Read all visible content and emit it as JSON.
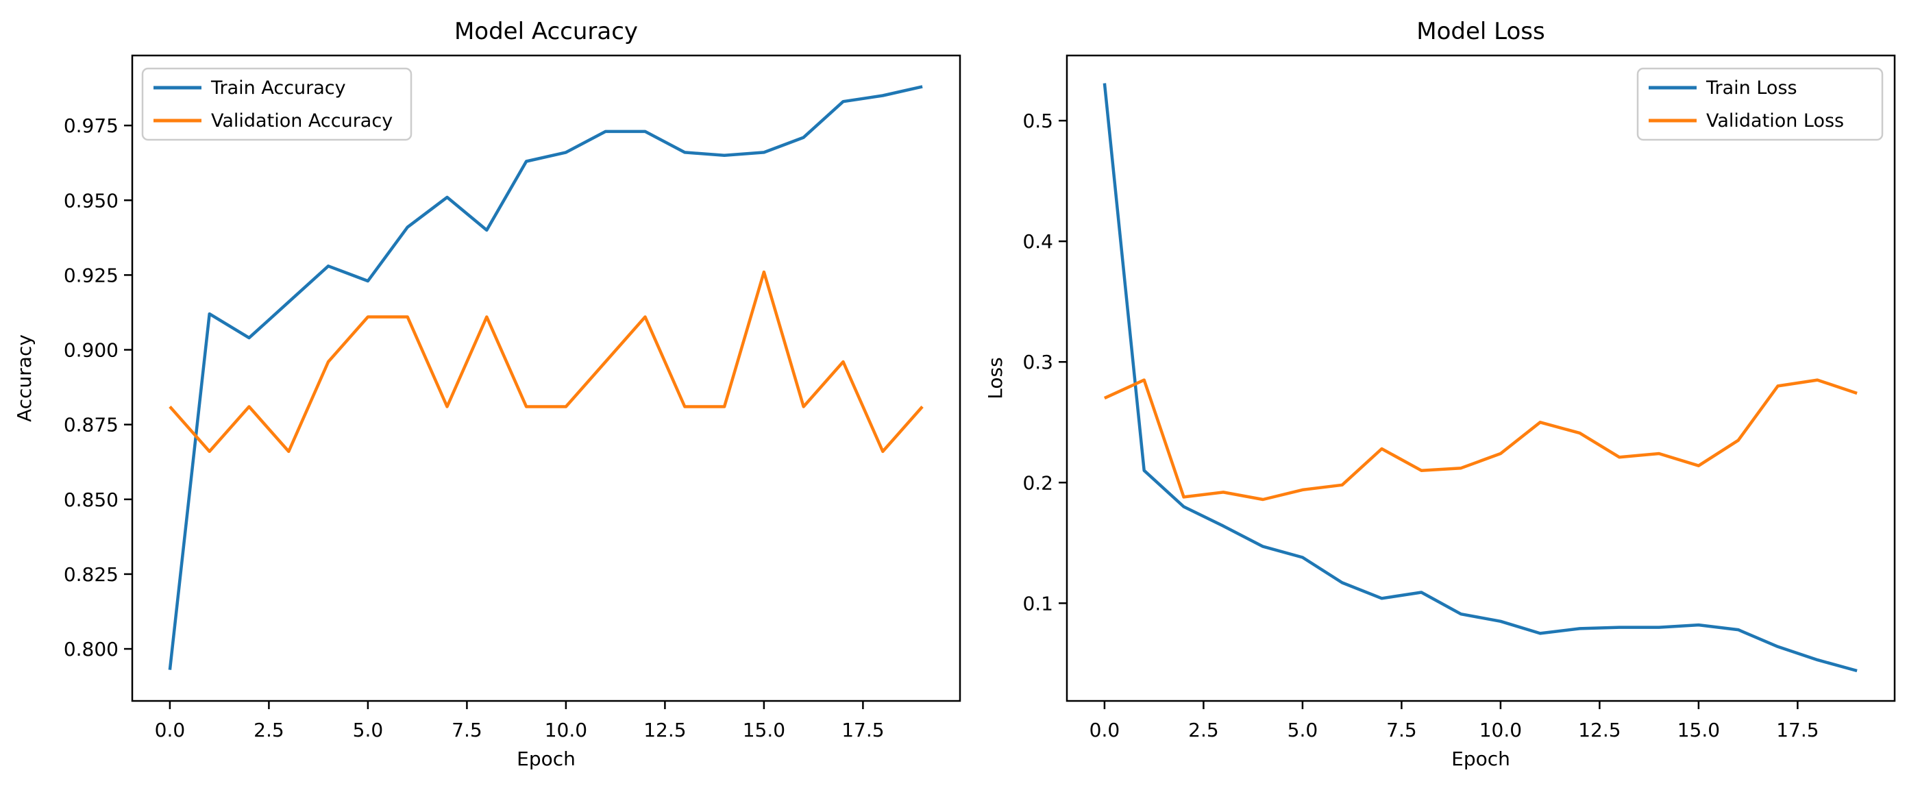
{
  "figure": {
    "background": "#ffffff"
  },
  "colors": {
    "train": "#1f77b4",
    "validation": "#ff7f0e",
    "spine": "#000000",
    "text": "#000000",
    "legend_border": "#cccccc"
  },
  "chart_data": [
    {
      "type": "line",
      "title": "Model Accuracy",
      "xlabel": "Epoch",
      "ylabel": "Accuracy",
      "grid": false,
      "legend_position": "upper-left",
      "xlim": [
        -0.95,
        19.95
      ],
      "ylim": [
        0.7826,
        0.9984
      ],
      "x": [
        0,
        1,
        2,
        3,
        4,
        5,
        6,
        7,
        8,
        9,
        10,
        11,
        12,
        13,
        14,
        15,
        16,
        17,
        18,
        19
      ],
      "xticks": {
        "values": [
          0,
          2.5,
          5,
          7.5,
          10,
          12.5,
          15,
          17.5
        ],
        "labels": [
          "0.0",
          "2.5",
          "5.0",
          "7.5",
          "10.0",
          "12.5",
          "15.0",
          "17.5"
        ]
      },
      "yticks": {
        "values": [
          0.8,
          0.825,
          0.85,
          0.875,
          0.9,
          0.925,
          0.95,
          0.975
        ],
        "labels": [
          "0.800",
          "0.825",
          "0.850",
          "0.875",
          "0.900",
          "0.925",
          "0.950",
          "0.975"
        ]
      },
      "series": [
        {
          "name": "Train Accuracy",
          "color_key": "train",
          "values": [
            0.793,
            0.912,
            0.904,
            0.916,
            0.928,
            0.923,
            0.941,
            0.951,
            0.94,
            0.963,
            0.966,
            0.973,
            0.973,
            0.966,
            0.965,
            0.966,
            0.971,
            0.983,
            0.985,
            0.988
          ]
        },
        {
          "name": "Validation Accuracy",
          "color_key": "validation",
          "values": [
            0.881,
            0.866,
            0.881,
            0.866,
            0.896,
            0.911,
            0.911,
            0.881,
            0.911,
            0.881,
            0.881,
            0.896,
            0.911,
            0.881,
            0.881,
            0.926,
            0.881,
            0.896,
            0.866,
            0.881
          ]
        }
      ]
    },
    {
      "type": "line",
      "title": "Model Loss",
      "xlabel": "Epoch",
      "ylabel": "Loss",
      "grid": false,
      "legend_position": "upper-right",
      "xlim": [
        -0.95,
        19.95
      ],
      "ylim": [
        0.019,
        0.554
      ],
      "x": [
        0,
        1,
        2,
        3,
        4,
        5,
        6,
        7,
        8,
        9,
        10,
        11,
        12,
        13,
        14,
        15,
        16,
        17,
        18,
        19
      ],
      "xticks": {
        "values": [
          0,
          2.5,
          5,
          7.5,
          10,
          12.5,
          15,
          17.5
        ],
        "labels": [
          "0.0",
          "2.5",
          "5.0",
          "7.5",
          "10.0",
          "12.5",
          "15.0",
          "17.5"
        ]
      },
      "yticks": {
        "values": [
          0.1,
          0.2,
          0.3,
          0.4,
          0.5
        ],
        "labels": [
          "0.1",
          "0.2",
          "0.3",
          "0.4",
          "0.5"
        ]
      },
      "series": [
        {
          "name": "Train Loss",
          "color_key": "train",
          "values": [
            0.531,
            0.21,
            0.18,
            0.164,
            0.147,
            0.138,
            0.117,
            0.104,
            0.109,
            0.091,
            0.085,
            0.075,
            0.079,
            0.08,
            0.08,
            0.082,
            0.078,
            0.064,
            0.053,
            0.044
          ]
        },
        {
          "name": "Validation Loss",
          "color_key": "validation",
          "values": [
            0.27,
            0.285,
            0.188,
            0.192,
            0.186,
            0.194,
            0.198,
            0.228,
            0.21,
            0.212,
            0.224,
            0.25,
            0.241,
            0.221,
            0.224,
            0.214,
            0.235,
            0.28,
            0.285,
            0.274
          ]
        }
      ]
    }
  ]
}
